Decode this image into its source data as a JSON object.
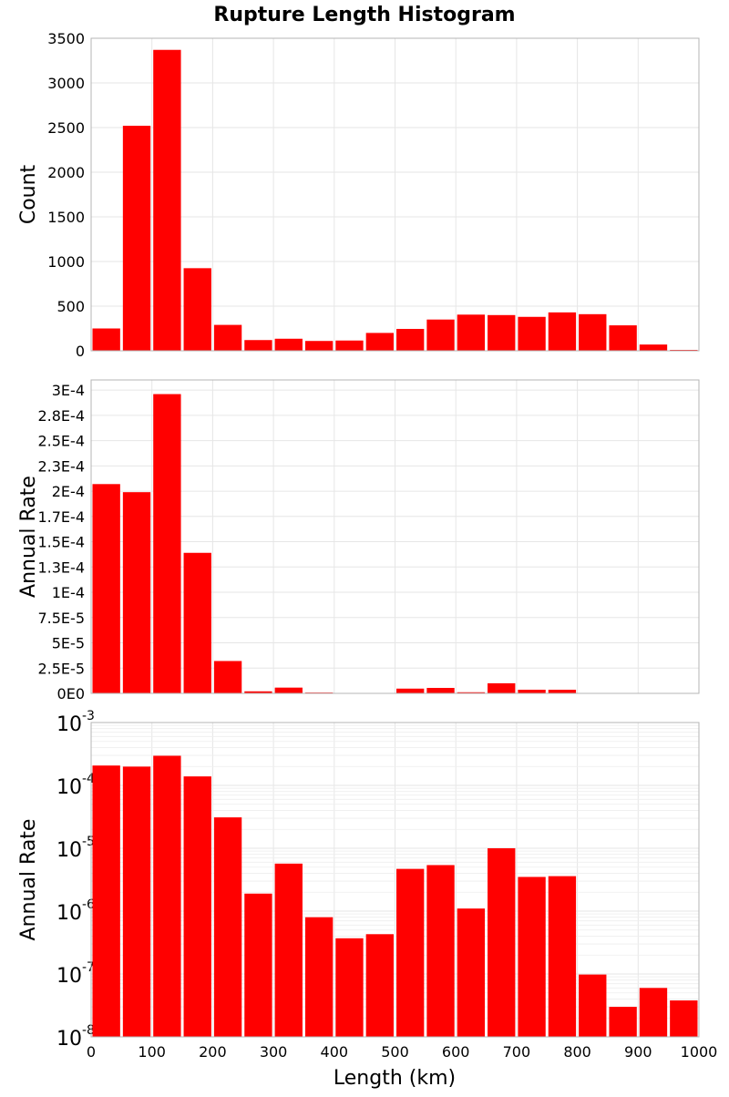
{
  "chart_data": {
    "title": "Rupture Length Histogram",
    "xlabel": "Length (km)",
    "x_ticks": [
      "0",
      "100",
      "200",
      "300",
      "400",
      "500",
      "600",
      "700",
      "800",
      "900",
      "1000"
    ],
    "xlim": [
      0,
      1000
    ],
    "bin_width": 50,
    "bin_centers": [
      25,
      75,
      125,
      175,
      225,
      275,
      325,
      375,
      425,
      475,
      525,
      575,
      625,
      675,
      725,
      775,
      825,
      875,
      925,
      975
    ],
    "bar_color": "#ff0000",
    "grid": true,
    "panels": [
      {
        "type": "bar",
        "ylabel": "Count",
        "ylim": [
          0,
          3500
        ],
        "scale": "linear",
        "y_ticks": [
          {
            "v": 0,
            "label": "0"
          },
          {
            "v": 500,
            "label": "500"
          },
          {
            "v": 1000,
            "label": "1000"
          },
          {
            "v": 1500,
            "label": "1500"
          },
          {
            "v": 2000,
            "label": "2000"
          },
          {
            "v": 2500,
            "label": "2500"
          },
          {
            "v": 3000,
            "label": "3000"
          },
          {
            "v": 3500,
            "label": "3500"
          }
        ],
        "values": [
          250,
          2520,
          3370,
          925,
          290,
          120,
          135,
          110,
          115,
          200,
          245,
          350,
          405,
          400,
          380,
          430,
          410,
          285,
          70,
          10
        ]
      },
      {
        "type": "bar",
        "ylabel": "Annual Rate",
        "ylim": [
          0,
          0.00031
        ],
        "scale": "linear",
        "y_ticks": [
          {
            "v": 0,
            "label": "0E0"
          },
          {
            "v": 2.5e-05,
            "label": "2.5E-5"
          },
          {
            "v": 5e-05,
            "label": "5E-5"
          },
          {
            "v": 7.5e-05,
            "label": "7.5E-5"
          },
          {
            "v": 0.0001,
            "label": "1E-4"
          },
          {
            "v": 0.000125,
            "label": "1.3E-4"
          },
          {
            "v": 0.00015,
            "label": "1.5E-4"
          },
          {
            "v": 0.000175,
            "label": "1.7E-4"
          },
          {
            "v": 0.0002,
            "label": "2E-4"
          },
          {
            "v": 0.000225,
            "label": "2.3E-4"
          },
          {
            "v": 0.00025,
            "label": "2.5E-4"
          },
          {
            "v": 0.000275,
            "label": "2.8E-4"
          },
          {
            "v": 0.0003,
            "label": "3E-4"
          }
        ],
        "values": [
          0.000207,
          0.000199,
          0.000296,
          0.000139,
          3.2e-05,
          2e-06,
          5.7e-06,
          8e-07,
          3.7e-07,
          4.3e-07,
          4.7e-06,
          5.4e-06,
          1.1e-06,
          1e-05,
          3.6e-06,
          3.6e-06,
          9.8e-08,
          3e-08,
          6e-08,
          3.8e-08
        ]
      },
      {
        "type": "bar",
        "ylabel": "Annual Rate",
        "ylim": [
          1e-08,
          0.001
        ],
        "scale": "log",
        "y_ticks": [
          {
            "v": 1e-08,
            "base": "10",
            "exp": "-8"
          },
          {
            "v": 1e-07,
            "base": "10",
            "exp": "-7"
          },
          {
            "v": 1e-06,
            "base": "10",
            "exp": "-6"
          },
          {
            "v": 1e-05,
            "base": "10",
            "exp": "-5"
          },
          {
            "v": 0.0001,
            "base": "10",
            "exp": "-4"
          },
          {
            "v": 0.001,
            "base": "10",
            "exp": "-3"
          }
        ],
        "values": [
          0.000207,
          0.000199,
          0.000296,
          0.000139,
          3.1e-05,
          1.9e-06,
          5.7e-06,
          8e-07,
          3.7e-07,
          4.3e-07,
          4.7e-06,
          5.4e-06,
          1.1e-06,
          1e-05,
          3.5e-06,
          3.6e-06,
          9.8e-08,
          3e-08,
          6e-08,
          3.8e-08
        ]
      }
    ]
  }
}
